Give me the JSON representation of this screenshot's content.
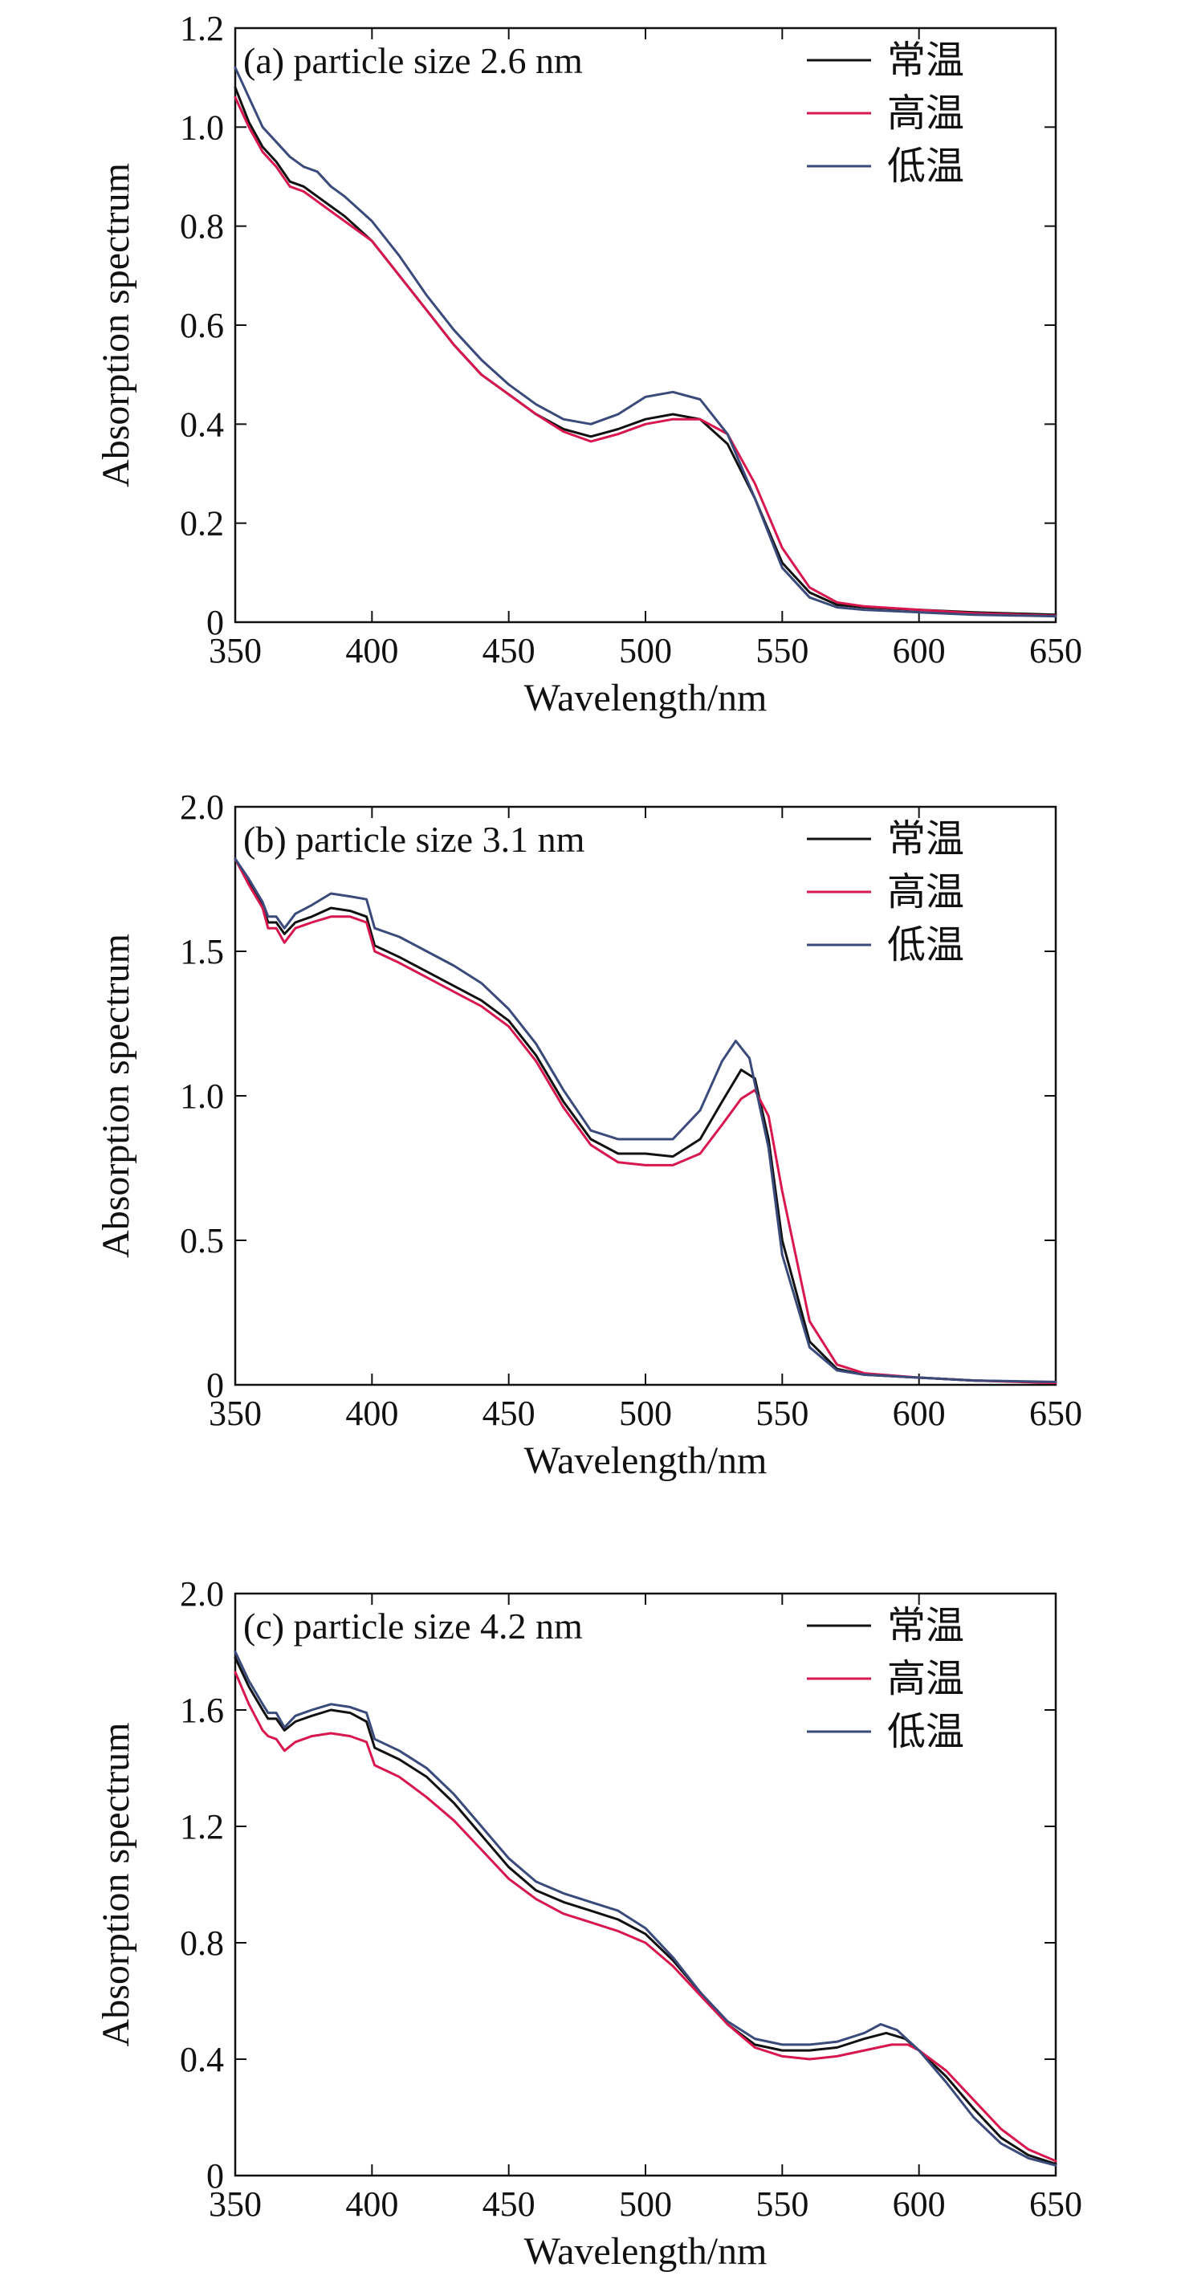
{
  "chart_data": [
    {
      "type": "line",
      "title": "(a) particle size 2.6 nm",
      "xlabel": "Wavelength/nm",
      "ylabel": "Absorption spectrum",
      "xlim": [
        350,
        650
      ],
      "ylim": [
        0,
        1.2
      ],
      "xticks": [
        "350",
        "400",
        "450",
        "500",
        "550",
        "600",
        "650"
      ],
      "yticks": [
        "0",
        "0.2",
        "0.4",
        "0.6",
        "0.8",
        "1.0",
        "1.2"
      ],
      "legend_position": "top-right",
      "series": [
        {
          "name": "常温",
          "color": "#111111",
          "x": [
            350,
            355,
            360,
            365,
            370,
            375,
            380,
            385,
            390,
            400,
            410,
            420,
            430,
            440,
            450,
            460,
            470,
            480,
            490,
            500,
            510,
            520,
            530,
            540,
            550,
            560,
            570,
            580,
            600,
            620,
            650
          ],
          "y": [
            1.08,
            1.01,
            0.96,
            0.93,
            0.89,
            0.88,
            0.86,
            0.84,
            0.82,
            0.77,
            0.7,
            0.63,
            0.56,
            0.5,
            0.46,
            0.42,
            0.39,
            0.375,
            0.39,
            0.41,
            0.42,
            0.41,
            0.36,
            0.25,
            0.12,
            0.06,
            0.035,
            0.03,
            0.025,
            0.02,
            0.015
          ]
        },
        {
          "name": "高温",
          "color": "#d8174e",
          "x": [
            350,
            355,
            360,
            365,
            370,
            375,
            380,
            385,
            390,
            400,
            410,
            420,
            430,
            440,
            450,
            460,
            470,
            480,
            490,
            500,
            510,
            520,
            530,
            540,
            550,
            560,
            570,
            580,
            600,
            620,
            650
          ],
          "y": [
            1.06,
            1.0,
            0.95,
            0.92,
            0.88,
            0.87,
            0.85,
            0.83,
            0.81,
            0.77,
            0.7,
            0.63,
            0.56,
            0.5,
            0.46,
            0.42,
            0.385,
            0.365,
            0.38,
            0.4,
            0.41,
            0.41,
            0.38,
            0.28,
            0.15,
            0.07,
            0.04,
            0.032,
            0.025,
            0.018,
            0.013
          ]
        },
        {
          "name": "低温",
          "color": "#3a4a7a",
          "x": [
            350,
            355,
            360,
            365,
            370,
            375,
            380,
            385,
            390,
            400,
            410,
            420,
            430,
            440,
            450,
            460,
            470,
            480,
            490,
            500,
            510,
            520,
            530,
            540,
            550,
            560,
            570,
            580,
            600,
            620,
            650
          ],
          "y": [
            1.12,
            1.06,
            1.0,
            0.97,
            0.94,
            0.92,
            0.91,
            0.88,
            0.86,
            0.81,
            0.74,
            0.66,
            0.59,
            0.53,
            0.48,
            0.44,
            0.41,
            0.4,
            0.42,
            0.455,
            0.465,
            0.45,
            0.38,
            0.25,
            0.11,
            0.05,
            0.03,
            0.025,
            0.02,
            0.015,
            0.012
          ]
        }
      ]
    },
    {
      "type": "line",
      "title": "(b) particle size 3.1 nm",
      "xlabel": "Wavelength/nm",
      "ylabel": "Absorption spectrum",
      "xlim": [
        350,
        650
      ],
      "ylim": [
        0,
        2.0
      ],
      "xticks": [
        "350",
        "400",
        "450",
        "500",
        "550",
        "600",
        "650"
      ],
      "yticks": [
        "0",
        "0.5",
        "1.0",
        "1.5",
        "2.0"
      ],
      "legend_position": "top-right",
      "series": [
        {
          "name": "常温",
          "color": "#111111",
          "x": [
            350,
            355,
            360,
            362,
            365,
            368,
            372,
            378,
            385,
            392,
            398,
            401,
            410,
            420,
            430,
            440,
            450,
            460,
            470,
            480,
            490,
            500,
            510,
            520,
            528,
            535,
            540,
            545,
            550,
            560,
            570,
            580,
            600,
            620,
            650
          ],
          "y": [
            1.82,
            1.74,
            1.66,
            1.6,
            1.6,
            1.56,
            1.6,
            1.62,
            1.65,
            1.64,
            1.62,
            1.52,
            1.48,
            1.43,
            1.38,
            1.33,
            1.26,
            1.14,
            0.98,
            0.85,
            0.8,
            0.8,
            0.79,
            0.85,
            0.98,
            1.09,
            1.06,
            0.85,
            0.5,
            0.15,
            0.055,
            0.035,
            0.025,
            0.015,
            0.008
          ]
        },
        {
          "name": "高温",
          "color": "#d8174e",
          "x": [
            350,
            355,
            360,
            362,
            365,
            368,
            372,
            378,
            385,
            392,
            398,
            401,
            410,
            420,
            430,
            440,
            450,
            460,
            470,
            480,
            490,
            500,
            510,
            520,
            528,
            535,
            540,
            545,
            550,
            560,
            570,
            580,
            600,
            620,
            650
          ],
          "y": [
            1.82,
            1.73,
            1.65,
            1.58,
            1.58,
            1.53,
            1.58,
            1.6,
            1.62,
            1.62,
            1.6,
            1.5,
            1.46,
            1.41,
            1.36,
            1.31,
            1.24,
            1.12,
            0.96,
            0.83,
            0.77,
            0.76,
            0.76,
            0.8,
            0.9,
            0.99,
            1.02,
            0.93,
            0.67,
            0.22,
            0.07,
            0.04,
            0.025,
            0.015,
            0.006
          ]
        },
        {
          "name": "低温",
          "color": "#3a4a7a",
          "x": [
            350,
            355,
            360,
            362,
            365,
            368,
            372,
            378,
            385,
            392,
            398,
            401,
            410,
            420,
            430,
            440,
            450,
            460,
            470,
            480,
            490,
            500,
            510,
            520,
            528,
            533,
            538,
            545,
            550,
            560,
            570,
            580,
            600,
            620,
            650
          ],
          "y": [
            1.82,
            1.75,
            1.67,
            1.62,
            1.62,
            1.58,
            1.63,
            1.66,
            1.7,
            1.69,
            1.68,
            1.58,
            1.55,
            1.5,
            1.45,
            1.39,
            1.3,
            1.18,
            1.02,
            0.88,
            0.85,
            0.85,
            0.85,
            0.95,
            1.12,
            1.19,
            1.13,
            0.82,
            0.45,
            0.13,
            0.05,
            0.035,
            0.025,
            0.015,
            0.01
          ]
        }
      ]
    },
    {
      "type": "line",
      "title": "(c) particle size 4.2 nm",
      "xlabel": "Wavelength/nm",
      "ylabel": "Absorption spectrum",
      "xlim": [
        350,
        650
      ],
      "ylim": [
        0,
        2.0
      ],
      "xticks": [
        "350",
        "400",
        "450",
        "500",
        "550",
        "600",
        "650"
      ],
      "yticks": [
        "0",
        "0.4",
        "0.8",
        "1.2",
        "1.6",
        "2.0"
      ],
      "legend_position": "top-right",
      "series": [
        {
          "name": "常温",
          "color": "#111111",
          "x": [
            350,
            355,
            360,
            362,
            365,
            368,
            372,
            378,
            385,
            392,
            398,
            401,
            410,
            420,
            430,
            440,
            450,
            460,
            470,
            480,
            490,
            500,
            510,
            520,
            530,
            540,
            550,
            560,
            570,
            580,
            588,
            595,
            600,
            610,
            620,
            630,
            640,
            650
          ],
          "y": [
            1.78,
            1.68,
            1.6,
            1.57,
            1.57,
            1.53,
            1.56,
            1.58,
            1.6,
            1.59,
            1.56,
            1.47,
            1.43,
            1.37,
            1.28,
            1.17,
            1.06,
            0.98,
            0.94,
            0.91,
            0.88,
            0.83,
            0.74,
            0.63,
            0.52,
            0.45,
            0.43,
            0.43,
            0.44,
            0.47,
            0.49,
            0.47,
            0.43,
            0.34,
            0.23,
            0.13,
            0.07,
            0.04
          ]
        },
        {
          "name": "高温",
          "color": "#d8174e",
          "x": [
            350,
            355,
            360,
            362,
            365,
            368,
            372,
            378,
            385,
            392,
            398,
            401,
            410,
            420,
            430,
            440,
            450,
            460,
            470,
            480,
            490,
            500,
            510,
            520,
            530,
            540,
            550,
            560,
            570,
            580,
            590,
            596,
            600,
            610,
            620,
            630,
            640,
            650
          ],
          "y": [
            1.73,
            1.62,
            1.53,
            1.51,
            1.5,
            1.46,
            1.49,
            1.51,
            1.52,
            1.51,
            1.49,
            1.41,
            1.37,
            1.3,
            1.22,
            1.12,
            1.02,
            0.95,
            0.9,
            0.87,
            0.84,
            0.8,
            0.72,
            0.62,
            0.52,
            0.44,
            0.41,
            0.4,
            0.41,
            0.43,
            0.45,
            0.45,
            0.43,
            0.36,
            0.26,
            0.16,
            0.09,
            0.05
          ]
        },
        {
          "name": "低温",
          "color": "#3a4a7a",
          "x": [
            350,
            355,
            360,
            362,
            365,
            368,
            372,
            378,
            385,
            392,
            398,
            401,
            410,
            420,
            430,
            440,
            450,
            460,
            470,
            480,
            490,
            500,
            510,
            520,
            530,
            540,
            550,
            560,
            570,
            580,
            586,
            592,
            600,
            610,
            620,
            630,
            640,
            650
          ],
          "y": [
            1.8,
            1.7,
            1.62,
            1.59,
            1.59,
            1.54,
            1.58,
            1.6,
            1.62,
            1.61,
            1.59,
            1.5,
            1.46,
            1.4,
            1.31,
            1.2,
            1.09,
            1.01,
            0.97,
            0.94,
            0.91,
            0.85,
            0.75,
            0.63,
            0.53,
            0.47,
            0.45,
            0.45,
            0.46,
            0.49,
            0.52,
            0.5,
            0.43,
            0.32,
            0.2,
            0.11,
            0.06,
            0.035
          ]
        }
      ]
    }
  ]
}
